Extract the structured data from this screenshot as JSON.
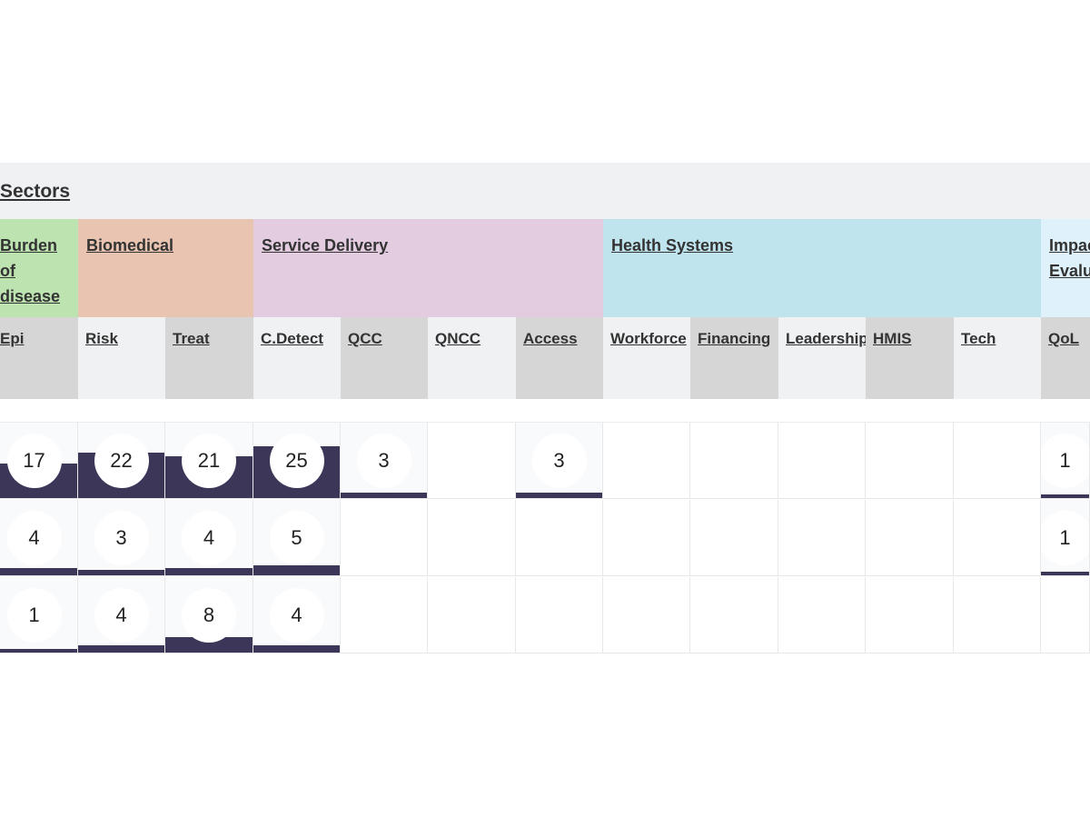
{
  "header": {
    "sectors_label": "Sectors"
  },
  "groups": [
    {
      "key": "burden",
      "label": "Burden of disease",
      "color": "#bde3b0"
    },
    {
      "key": "biomedical",
      "label": "Biomedical",
      "color": "#e8c4b1"
    },
    {
      "key": "service",
      "label": "Service Delivery",
      "color": "#e3cbe0"
    },
    {
      "key": "health",
      "label": "Health Systems",
      "color": "#c0e4ee"
    },
    {
      "key": "impact",
      "label": "Impact Evaluation",
      "color": "#dff2fb"
    }
  ],
  "subsectors": [
    "Epi",
    "Risk",
    "Treat",
    "C.Detect",
    "QCC",
    "QNCC",
    "Access",
    "Workforce",
    "Financing",
    "Leadership",
    "HMIS",
    "Tech",
    "QoL"
  ],
  "rows": [
    {
      "counts": [
        "17",
        "22",
        "21",
        "25",
        "3",
        "",
        "3",
        "",
        "",
        "",
        "",
        "",
        "1"
      ],
      "fill_level": [
        0.45,
        0.6,
        0.55,
        0.68,
        0.07,
        0,
        0.07,
        0,
        0,
        0,
        0,
        0,
        0.03
      ]
    },
    {
      "counts": [
        "4",
        "3",
        "4",
        "5",
        "",
        "",
        "",
        "",
        "",
        "",
        "",
        "",
        "1"
      ],
      "fill_level": [
        0.1,
        0.07,
        0.1,
        0.13,
        0,
        0,
        0,
        0,
        0,
        0,
        0,
        0,
        0.03
      ]
    },
    {
      "counts": [
        "1",
        "4",
        "8",
        "4",
        "",
        "",
        "",
        "",
        "",
        "",
        "",
        "",
        ""
      ],
      "fill_level": [
        0.03,
        0.1,
        0.2,
        0.1,
        0,
        0,
        0,
        0,
        0,
        0,
        0,
        0,
        0
      ]
    }
  ],
  "colors": {
    "bar_fill": "#3c3659",
    "subheader_light": "#eff1f3",
    "subheader_dark": "#d6d6d6"
  }
}
